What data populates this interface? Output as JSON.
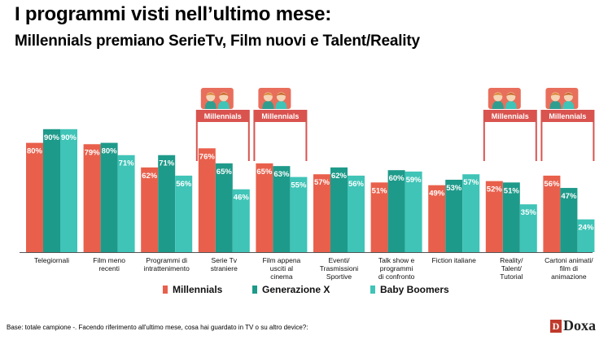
{
  "header": {
    "title": "I programmi visti nell’ultimo mese:",
    "subtitle": "Millennials premiano SerieTv, Film nuovi e Talent/Reality"
  },
  "colors": {
    "millennials": "#e8604c",
    "generazione_x": "#1e9a8a",
    "baby_boomers": "#3fc4b7",
    "highlight_box": "#d9534f"
  },
  "chart_data": {
    "type": "bar",
    "categories": [
      [
        "Telegiornali"
      ],
      [
        "Film meno",
        "recenti"
      ],
      [
        "Programmi di",
        "intrattenimento"
      ],
      [
        "Serie Tv",
        "straniere"
      ],
      [
        "Film appena",
        "usciti al",
        "cinema"
      ],
      [
        "Eventi/",
        "Trasmissioni",
        "Sportive"
      ],
      [
        "Talk show e",
        "programmi",
        "di confronto"
      ],
      [
        "Fiction italiane"
      ],
      [
        "Reality/",
        "Talent/",
        "Tutorial"
      ],
      [
        "Cartoni animati/",
        "film di",
        "animazione"
      ]
    ],
    "series": [
      {
        "name": "Millennials",
        "color": "#e8604c",
        "values": [
          80,
          79,
          62,
          76,
          65,
          57,
          51,
          49,
          52,
          56
        ]
      },
      {
        "name": "Generazione X",
        "color": "#1e9a8a",
        "values": [
          90,
          80,
          71,
          65,
          63,
          62,
          60,
          53,
          51,
          47
        ]
      },
      {
        "name": "Baby Boomers",
        "color": "#3fc4b7",
        "values": [
          90,
          71,
          56,
          46,
          55,
          56,
          59,
          57,
          35,
          24
        ]
      }
    ],
    "value_suffix": "%",
    "ylim": [
      0,
      100
    ],
    "highlighted_categories": [
      3,
      4,
      8,
      9
    ],
    "highlight_label": "Millennials",
    "highlight_icon": "two-people-icon",
    "legend_placement": "bottom-center",
    "grid": false
  },
  "footnote": "Base: totale campione -. Facendo riferimento all'ultimo mese, cosa hai guardato in TV o su altro device?:",
  "logo": {
    "mark": "D",
    "text": "Doxa"
  }
}
